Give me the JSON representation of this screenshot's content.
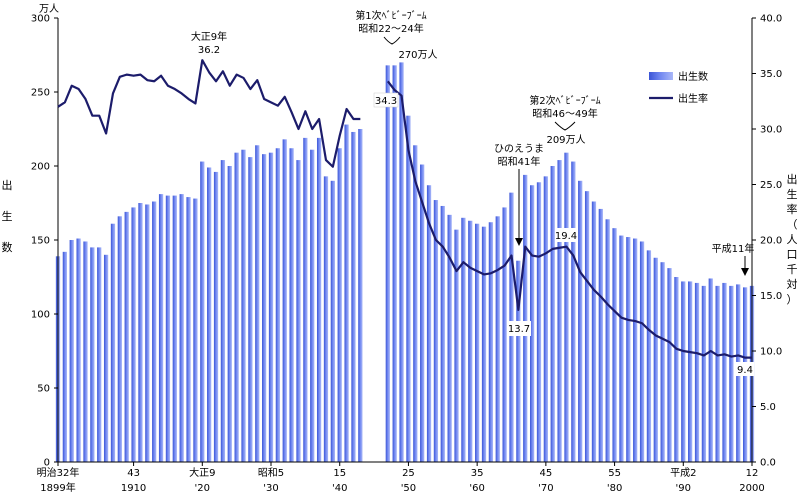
{
  "chart_data": {
    "type": "bar",
    "title": "",
    "left_axis": {
      "unit": "万人",
      "label_chars": [
        "出",
        "生",
        "数"
      ],
      "ylim": [
        0,
        300
      ],
      "ticks": [
        0,
        50,
        100,
        150,
        200,
        250,
        300
      ]
    },
    "right_axis": {
      "label_chars": [
        "出",
        "生",
        "率",
        "（",
        "人",
        "口",
        "千",
        "対",
        "）"
      ],
      "ylim": [
        0,
        40
      ],
      "ticks": [
        "0.0",
        "5.0",
        "10.0",
        "15.0",
        "20.0",
        "25.0",
        "30.0",
        "35.0",
        "40.0"
      ]
    },
    "x_range": [
      1899,
      2000
    ],
    "x_ticks": [
      {
        "x": 1899,
        "era": "明治32年",
        "year": "1899年"
      },
      {
        "x": 1910,
        "era": "43",
        "year": "1910"
      },
      {
        "x": 1920,
        "era": "大正9",
        "year": "'20"
      },
      {
        "x": 1930,
        "era": "昭和5",
        "year": "'30"
      },
      {
        "x": 1940,
        "era": "15",
        "year": "'40"
      },
      {
        "x": 1950,
        "era": "25",
        "year": "'50"
      },
      {
        "x": 1960,
        "era": "35",
        "year": "'60"
      },
      {
        "x": 1970,
        "era": "45",
        "year": "'70"
      },
      {
        "x": 1980,
        "era": "55",
        "year": "'80"
      },
      {
        "x": 1990,
        "era": "平成2",
        "year": "'90"
      },
      {
        "x": 2000,
        "era": "12",
        "year": "2000"
      }
    ],
    "legend": {
      "position": "top-right",
      "bars_label": "出生数",
      "line_label": "出生率"
    },
    "series": [
      {
        "name": "出生数",
        "kind": "bar",
        "color": "#6f86f0",
        "x": [
          1899,
          1900,
          1901,
          1902,
          1903,
          1904,
          1905,
          1906,
          1907,
          1908,
          1909,
          1910,
          1911,
          1912,
          1913,
          1914,
          1915,
          1916,
          1917,
          1918,
          1919,
          1920,
          1921,
          1922,
          1923,
          1924,
          1925,
          1926,
          1927,
          1928,
          1929,
          1930,
          1931,
          1932,
          1933,
          1934,
          1935,
          1936,
          1937,
          1938,
          1939,
          1940,
          1941,
          1942,
          1943,
          1947,
          1948,
          1949,
          1950,
          1951,
          1952,
          1953,
          1954,
          1955,
          1956,
          1957,
          1958,
          1959,
          1960,
          1961,
          1962,
          1963,
          1964,
          1965,
          1966,
          1967,
          1968,
          1969,
          1970,
          1971,
          1972,
          1973,
          1974,
          1975,
          1976,
          1977,
          1978,
          1979,
          1980,
          1981,
          1982,
          1983,
          1984,
          1985,
          1986,
          1987,
          1988,
          1989,
          1990,
          1991,
          1992,
          1993,
          1994,
          1995,
          1996,
          1997,
          1998,
          1999,
          2000
        ],
        "values": [
          139,
          142,
          150,
          151,
          149,
          145,
          145,
          140,
          161,
          166,
          169,
          172,
          175,
          174,
          176,
          181,
          180,
          180,
          181,
          179,
          178,
          203,
          199,
          196,
          204,
          200,
          209,
          211,
          206,
          214,
          208,
          209,
          212,
          218,
          212,
          204,
          219,
          211,
          219,
          193,
          190,
          212,
          228,
          223,
          225,
          268,
          268,
          270,
          234,
          214,
          201,
          187,
          177,
          173,
          167,
          157,
          165,
          163,
          161,
          159,
          162,
          166,
          172,
          182,
          136,
          194,
          187,
          189,
          193,
          200,
          204,
          209,
          203,
          190,
          183,
          176,
          171,
          164,
          158,
          153,
          152,
          151,
          149,
          143,
          138,
          135,
          131,
          125,
          122,
          122,
          121,
          119,
          124,
          119,
          121,
          119,
          120,
          118,
          119
        ]
      },
      {
        "name": "出生率",
        "kind": "line",
        "color": "#1c1c6b",
        "x": [
          1899,
          1900,
          1901,
          1902,
          1903,
          1904,
          1905,
          1906,
          1907,
          1908,
          1909,
          1910,
          1911,
          1912,
          1913,
          1914,
          1915,
          1916,
          1917,
          1918,
          1919,
          1920,
          1921,
          1922,
          1923,
          1924,
          1925,
          1926,
          1927,
          1928,
          1929,
          1930,
          1931,
          1932,
          1933,
          1934,
          1935,
          1936,
          1937,
          1938,
          1939,
          1940,
          1941,
          1942,
          1943,
          1947,
          1948,
          1949,
          1950,
          1951,
          1952,
          1953,
          1954,
          1955,
          1956,
          1957,
          1958,
          1959,
          1960,
          1961,
          1962,
          1963,
          1964,
          1965,
          1966,
          1967,
          1968,
          1969,
          1970,
          1971,
          1972,
          1973,
          1974,
          1975,
          1976,
          1977,
          1978,
          1979,
          1980,
          1981,
          1982,
          1983,
          1984,
          1985,
          1986,
          1987,
          1988,
          1989,
          1990,
          1991,
          1992,
          1993,
          1994,
          1995,
          1996,
          1997,
          1998,
          1999,
          2000
        ],
        "values": [
          32.0,
          32.4,
          33.9,
          33.6,
          32.7,
          31.2,
          31.2,
          29.6,
          33.2,
          34.7,
          34.9,
          34.8,
          34.9,
          34.4,
          34.3,
          34.8,
          33.9,
          33.6,
          33.2,
          32.7,
          32.3,
          36.2,
          35.1,
          34.3,
          35.2,
          33.9,
          34.9,
          34.6,
          33.6,
          34.4,
          32.7,
          32.4,
          32.1,
          32.9,
          31.5,
          30.0,
          31.6,
          30.0,
          30.9,
          27.2,
          26.6,
          29.4,
          31.8,
          30.9,
          30.9,
          34.3,
          33.5,
          33.0,
          28.1,
          25.3,
          23.4,
          21.5,
          20.0,
          19.4,
          18.4,
          17.2,
          18.0,
          17.5,
          17.2,
          16.9,
          17.0,
          17.3,
          17.7,
          18.6,
          13.7,
          19.4,
          18.6,
          18.5,
          18.8,
          19.2,
          19.3,
          19.4,
          18.6,
          17.1,
          16.3,
          15.5,
          14.9,
          14.2,
          13.6,
          13.0,
          12.8,
          12.7,
          12.5,
          11.9,
          11.4,
          11.1,
          10.8,
          10.2,
          10.0,
          9.9,
          9.8,
          9.6,
          10.0,
          9.6,
          9.7,
          9.5,
          9.6,
          9.4,
          9.4
        ]
      }
    ],
    "annotations": [
      {
        "id": "taisho9",
        "lines": [
          "大正9年",
          "36.2"
        ]
      },
      {
        "id": "boom1",
        "lines": [
          "第1次ﾍﾞﾋﾞｰﾌﾞｰﾑ",
          "昭和22～24年"
        ]
      },
      {
        "id": "births270",
        "text": "270万人"
      },
      {
        "id": "rate343",
        "text": "34.3"
      },
      {
        "id": "hinoeuma",
        "lines": [
          "ひのえうま",
          "昭和41年"
        ]
      },
      {
        "id": "rate137",
        "text": "13.7"
      },
      {
        "id": "boom2",
        "lines": [
          "第2次ﾍﾞﾋﾞｰﾌﾞｰﾑ",
          "昭和46～49年"
        ]
      },
      {
        "id": "births209",
        "text": "209万人"
      },
      {
        "id": "rate194",
        "text": "19.4"
      },
      {
        "id": "heisei11",
        "text": "平成11年"
      },
      {
        "id": "rate94",
        "text": "9.4"
      }
    ]
  }
}
